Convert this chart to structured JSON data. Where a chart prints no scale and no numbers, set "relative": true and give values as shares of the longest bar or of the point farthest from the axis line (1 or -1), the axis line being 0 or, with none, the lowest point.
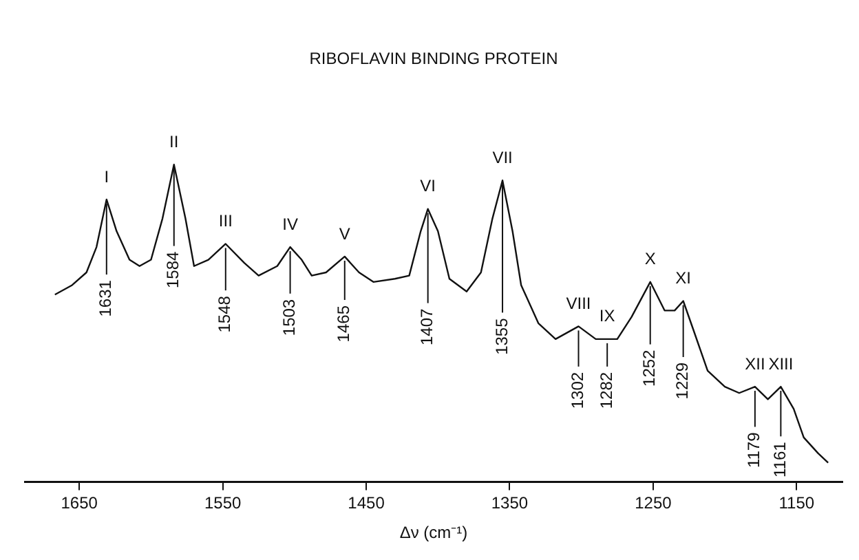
{
  "chart_data": {
    "type": "line",
    "title": "RIBOFLAVIN BINDING PROTEIN",
    "xlabel": "Δν (cm⁻¹)",
    "relative": true,
    "xlim": [
      1688,
      1118
    ],
    "xticks": [
      1650,
      1550,
      1450,
      1350,
      1250,
      1150
    ],
    "tick_labels": "x",
    "grid": false,
    "legend": false,
    "marker": "none",
    "line_style": "solid",
    "x": [
      1667,
      1655,
      1645,
      1638,
      1631,
      1624,
      1615,
      1608,
      1600,
      1592,
      1584,
      1576,
      1570,
      1560,
      1548,
      1535,
      1525,
      1512,
      1503,
      1495,
      1488,
      1478,
      1465,
      1455,
      1445,
      1430,
      1420,
      1412,
      1407,
      1400,
      1392,
      1380,
      1370,
      1362,
      1355,
      1348,
      1342,
      1330,
      1318,
      1302,
      1290,
      1275,
      1265,
      1252,
      1242,
      1235,
      1229,
      1222,
      1212,
      1200,
      1190,
      1179,
      1170,
      1161,
      1152,
      1145,
      1135,
      1128
    ],
    "series": [
      {
        "color": "#111111",
        "values": [
          0.59,
          0.62,
          0.66,
          0.74,
          0.89,
          0.79,
          0.7,
          0.68,
          0.7,
          0.83,
          1.0,
          0.83,
          0.68,
          0.7,
          0.75,
          0.69,
          0.65,
          0.68,
          0.74,
          0.7,
          0.65,
          0.66,
          0.71,
          0.66,
          0.63,
          0.64,
          0.65,
          0.79,
          0.86,
          0.79,
          0.64,
          0.6,
          0.66,
          0.83,
          0.95,
          0.79,
          0.62,
          0.5,
          0.45,
          0.49,
          0.45,
          0.45,
          0.52,
          0.63,
          0.54,
          0.54,
          0.57,
          0.48,
          0.35,
          0.3,
          0.28,
          0.3,
          0.26,
          0.3,
          0.23,
          0.14,
          0.09,
          0.06
        ]
      }
    ],
    "annotations": [
      {
        "text": "I",
        "x": 1631,
        "y": 0.89
      },
      {
        "text": "1631",
        "x": 1631,
        "y": 0.89
      },
      {
        "text": "II",
        "x": 1584,
        "y": 1.0
      },
      {
        "text": "1584",
        "x": 1584,
        "y": 1.0
      },
      {
        "text": "III",
        "x": 1548,
        "y": 0.75
      },
      {
        "text": "1548",
        "x": 1548,
        "y": 0.75
      },
      {
        "text": "IV",
        "x": 1503,
        "y": 0.74
      },
      {
        "text": "1503",
        "x": 1503,
        "y": 0.74
      },
      {
        "text": "V",
        "x": 1465,
        "y": 0.71
      },
      {
        "text": "1465",
        "x": 1465,
        "y": 0.71
      },
      {
        "text": "VI",
        "x": 1407,
        "y": 0.86
      },
      {
        "text": "1407",
        "x": 1407,
        "y": 0.86
      },
      {
        "text": "VII",
        "x": 1355,
        "y": 0.95
      },
      {
        "text": "1355",
        "x": 1355,
        "y": 0.95
      },
      {
        "text": "VIII",
        "x": 1302,
        "y": 0.49
      },
      {
        "text": "1302",
        "x": 1302,
        "y": 0.49
      },
      {
        "text": "IX",
        "x": 1282,
        "y": 0.45
      },
      {
        "text": "1282",
        "x": 1282,
        "y": 0.45
      },
      {
        "text": "X",
        "x": 1252,
        "y": 0.63
      },
      {
        "text": "1252",
        "x": 1252,
        "y": 0.63
      },
      {
        "text": "XI",
        "x": 1229,
        "y": 0.57
      },
      {
        "text": "1229",
        "x": 1229,
        "y": 0.57
      },
      {
        "text": "XII",
        "x": 1179,
        "y": 0.3
      },
      {
        "text": "1179",
        "x": 1179,
        "y": 0.3
      },
      {
        "text": "XIII",
        "x": 1161,
        "y": 0.3
      },
      {
        "text": "1161",
        "x": 1161,
        "y": 0.3
      }
    ]
  }
}
